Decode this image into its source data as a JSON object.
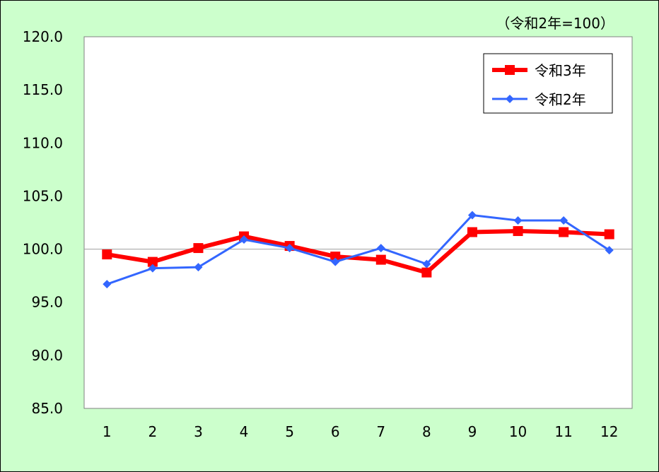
{
  "chart_data": {
    "type": "line",
    "unit_note": "（令和2年=100）",
    "categories": [
      "1",
      "2",
      "3",
      "4",
      "5",
      "6",
      "7",
      "8",
      "9",
      "10",
      "11",
      "12"
    ],
    "ylim": [
      85,
      120
    ],
    "yticks": [
      "85.0",
      "90.0",
      "95.0",
      "100.0",
      "105.0",
      "110.0",
      "115.0",
      "120.0"
    ],
    "reference_line": 100,
    "grid": false,
    "legend": "top-right",
    "series": [
      {
        "name": "令和3年",
        "color": "#ff0000",
        "marker": "square",
        "values": [
          99.5,
          98.8,
          100.1,
          101.2,
          100.3,
          99.3,
          99.0,
          97.8,
          101.6,
          101.7,
          101.6,
          101.4
        ]
      },
      {
        "name": "令和2年",
        "color": "#3366ff",
        "marker": "diamond",
        "values": [
          96.7,
          98.2,
          98.3,
          100.9,
          100.1,
          98.8,
          100.1,
          98.6,
          103.2,
          102.7,
          102.7,
          99.9
        ]
      }
    ]
  }
}
